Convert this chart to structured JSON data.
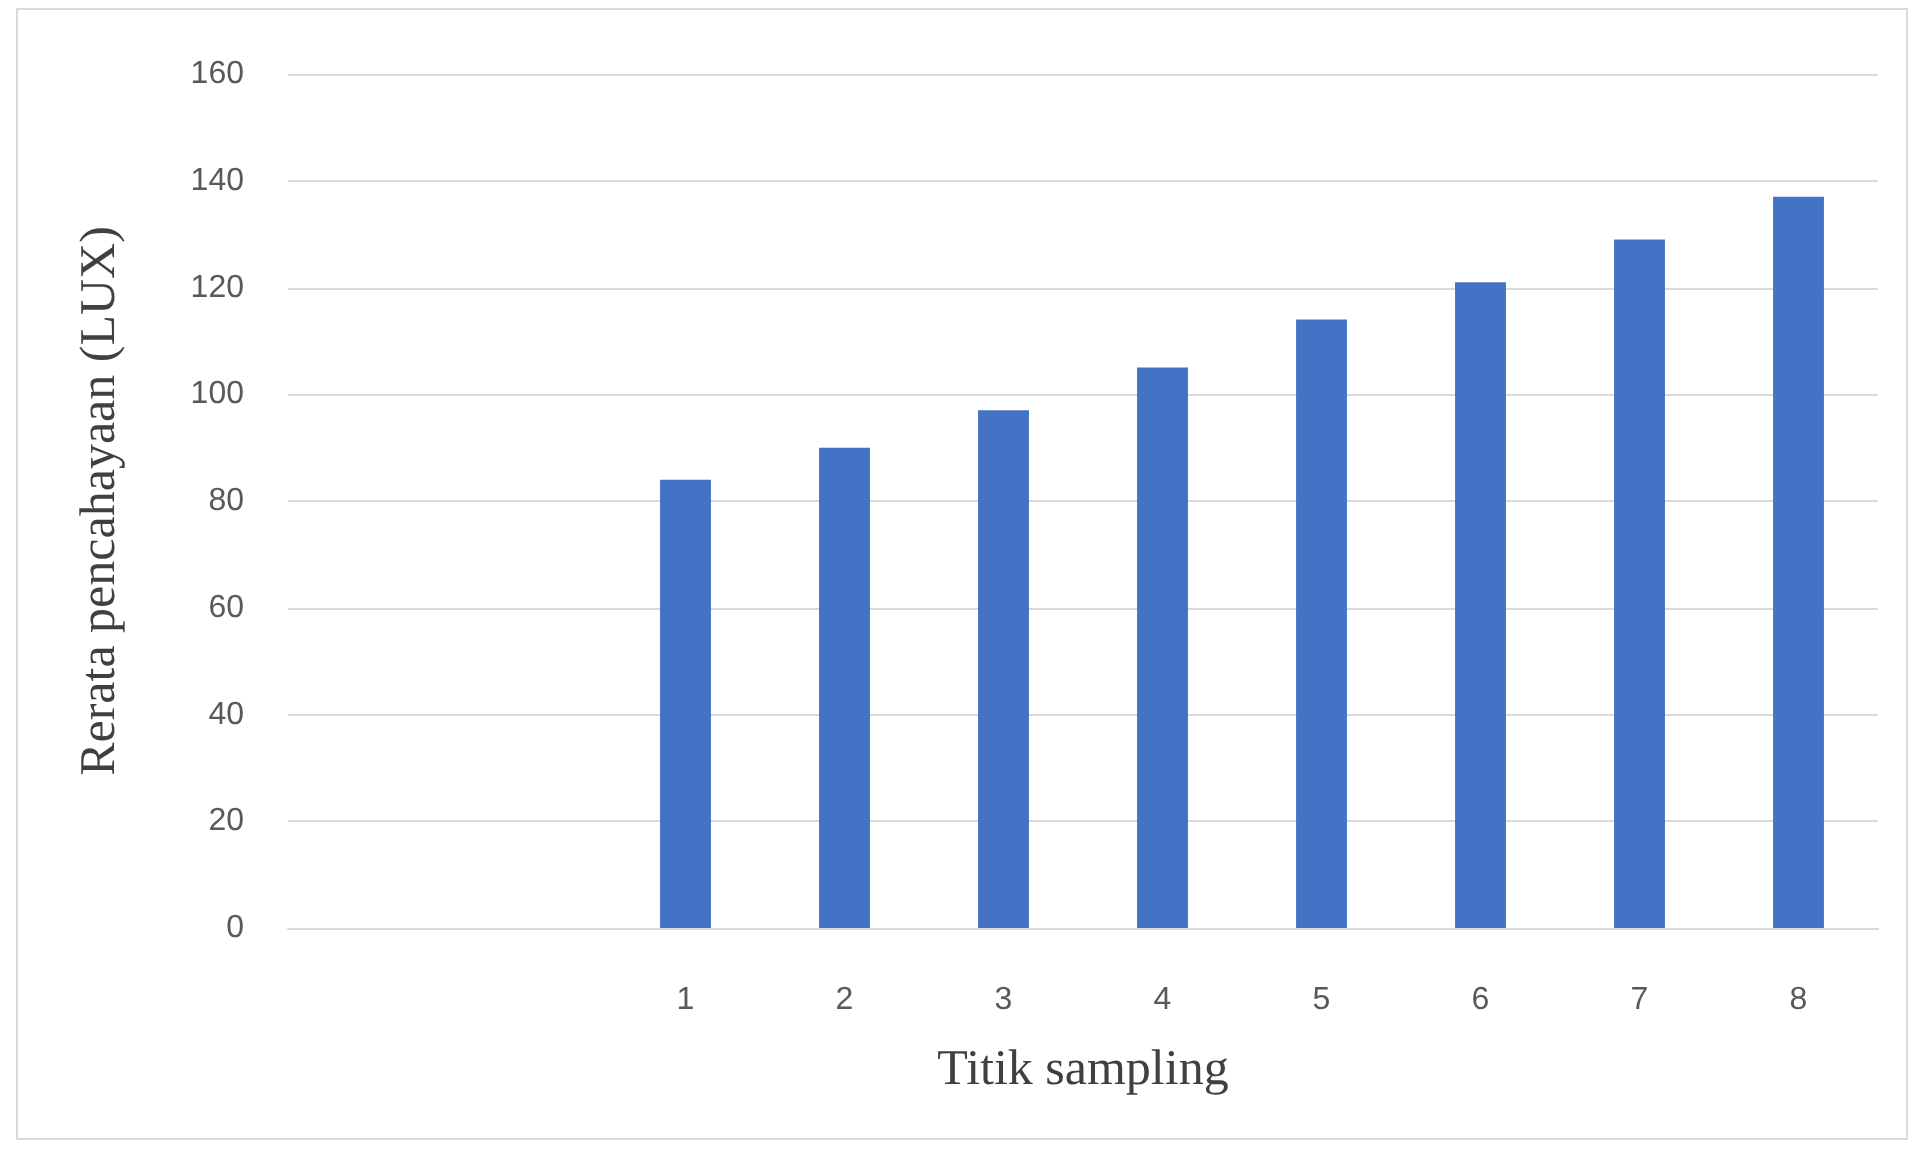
{
  "chart_data": {
    "type": "bar",
    "xlabel": "Titik sampling",
    "ylabel": "Rerata pencahayaan (LUX)",
    "categories": [
      null,
      null,
      "1",
      "2",
      "3",
      "4",
      "5",
      "6",
      "7",
      "8"
    ],
    "values": [
      null,
      null,
      84,
      90,
      97,
      105,
      114,
      121,
      129,
      137
    ],
    "color": "#4472c4",
    "ylim": [
      0,
      160
    ],
    "yticks": [
      0,
      20,
      40,
      60,
      80,
      100,
      120,
      140,
      160
    ],
    "grid": "y"
  }
}
